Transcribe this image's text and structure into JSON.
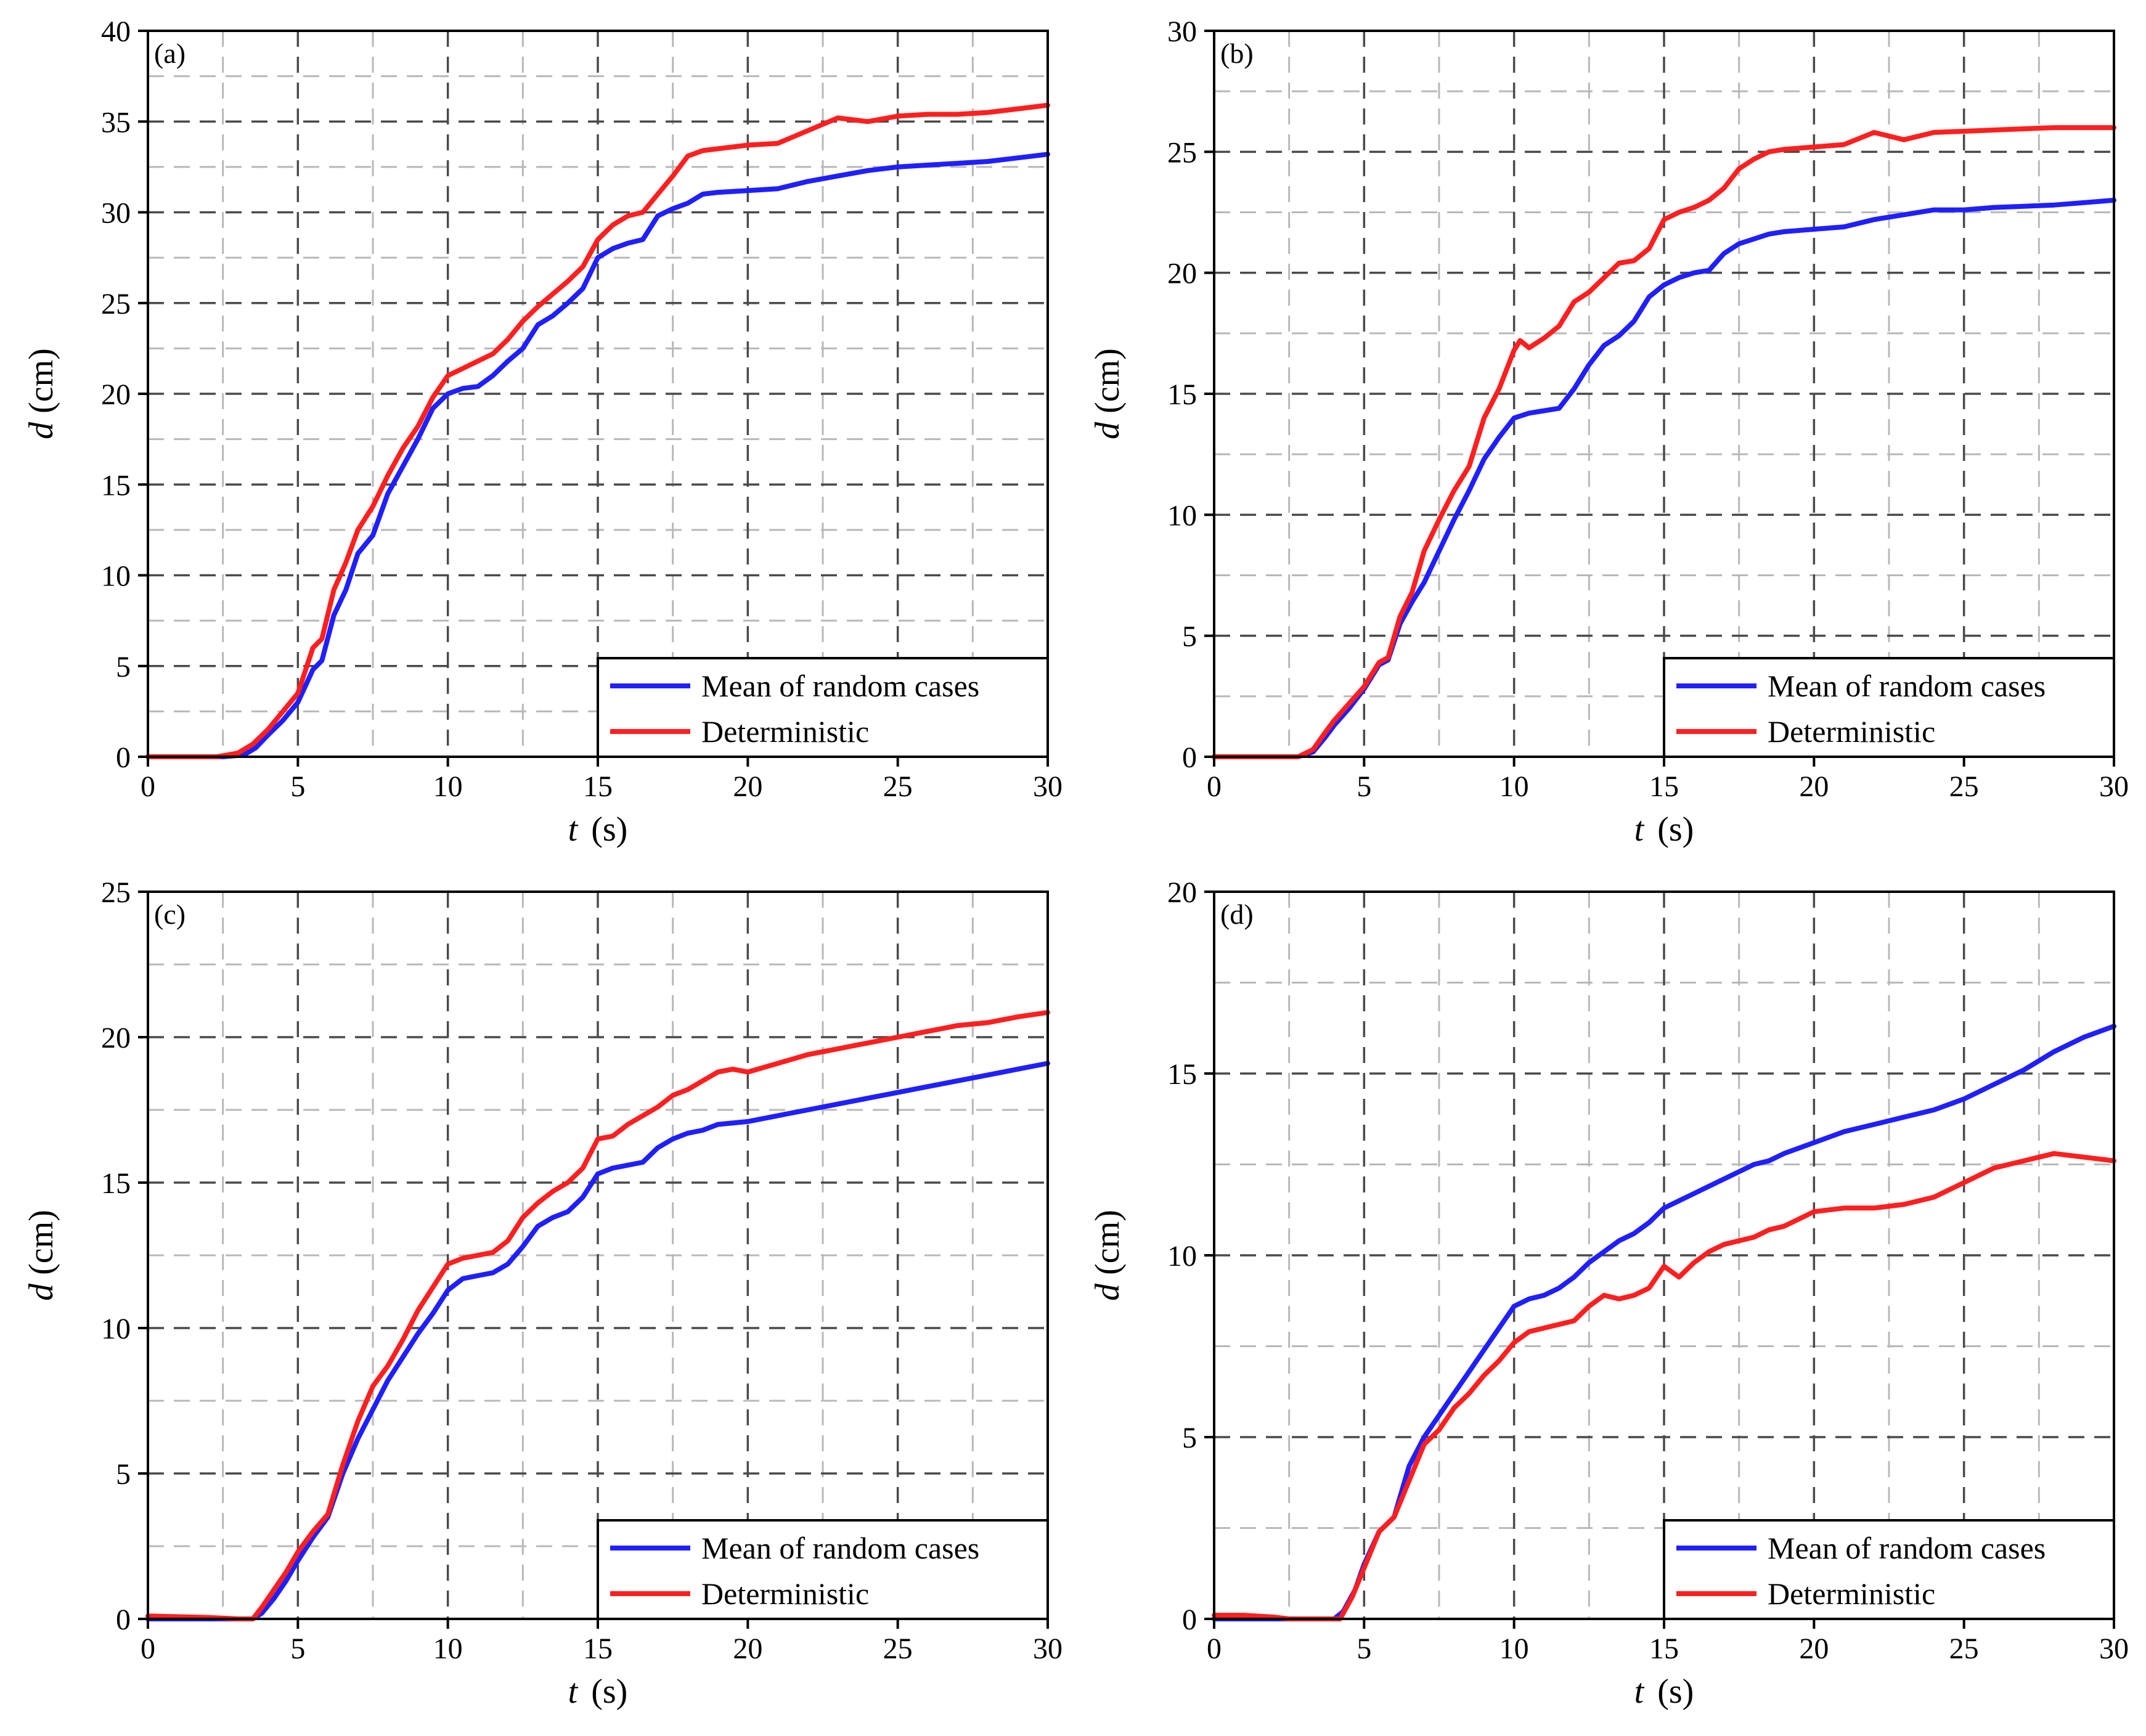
{
  "chart_data": [
    {
      "type": "line",
      "panel_label": "(a)",
      "xlabel": {
        "var": "t",
        "unit": "(s)"
      },
      "ylabel": {
        "var": "d",
        "unit": "(cm)"
      },
      "xlim": [
        0,
        30
      ],
      "ylim": [
        0,
        40
      ],
      "xticks": [
        0,
        5,
        10,
        15,
        20,
        25,
        30
      ],
      "yticks": [
        0,
        5,
        10,
        15,
        20,
        25,
        30,
        35,
        40
      ],
      "grid": true,
      "legend_position": "bottom-right",
      "series": [
        {
          "name": "Mean of random cases",
          "color": "#1f1fff",
          "x": [
            0,
            2.5,
            3.2,
            3.6,
            4,
            4.5,
            5,
            5.5,
            5.8,
            6.2,
            6.6,
            7,
            7.5,
            8,
            8.5,
            9,
            9.5,
            10,
            10.5,
            11,
            11.5,
            12,
            12.5,
            13,
            13.5,
            14,
            14.5,
            15,
            15.5,
            16,
            16.5,
            17,
            17.5,
            18,
            18.5,
            19,
            20,
            21,
            22,
            23,
            24,
            25,
            26,
            27,
            28,
            29,
            30
          ],
          "y": [
            0,
            0,
            0.1,
            0.5,
            1.2,
            2,
            3,
            4.8,
            5.3,
            7.8,
            9.2,
            11.2,
            12.2,
            14.5,
            16,
            17.5,
            19.2,
            20,
            20.3,
            20.4,
            21,
            21.8,
            22.5,
            23.8,
            24.3,
            25,
            25.8,
            27.5,
            28,
            28.3,
            28.5,
            29.8,
            30.2,
            30.5,
            31,
            31.1,
            31.2,
            31.3,
            31.7,
            32,
            32.3,
            32.5,
            32.6,
            32.7,
            32.8,
            33,
            33.2
          ]
        },
        {
          "name": "Deterministic",
          "color": "#ff1f1f",
          "x": [
            0,
            2.3,
            3,
            3.5,
            4,
            4.5,
            5,
            5.5,
            5.8,
            6.2,
            6.6,
            7,
            7.5,
            8,
            8.5,
            9,
            9.5,
            10,
            10.5,
            11,
            11.5,
            12,
            12.5,
            13,
            13.5,
            14,
            14.5,
            15,
            15.5,
            16,
            16.5,
            17,
            17.5,
            18,
            18.5,
            19,
            20,
            21,
            22,
            23,
            24,
            25,
            26,
            27,
            28,
            29,
            30
          ],
          "y": [
            0,
            0,
            0.2,
            0.7,
            1.5,
            2.5,
            3.5,
            6,
            6.5,
            9.2,
            10.7,
            12.5,
            13.8,
            15.5,
            17,
            18.2,
            19.8,
            21,
            21.4,
            21.8,
            22.2,
            23,
            24,
            24.8,
            25.5,
            26.2,
            27,
            28.5,
            29.3,
            29.8,
            30,
            31,
            32,
            33.1,
            33.4,
            33.5,
            33.7,
            33.8,
            34.5,
            35.2,
            35,
            35.3,
            35.4,
            35.4,
            35.5,
            35.7,
            35.9
          ]
        }
      ]
    },
    {
      "type": "line",
      "panel_label": "(b)",
      "xlabel": {
        "var": "t",
        "unit": "(s)"
      },
      "ylabel": {
        "var": "d",
        "unit": "(cm)"
      },
      "xlim": [
        0,
        30
      ],
      "ylim": [
        0,
        30
      ],
      "xticks": [
        0,
        5,
        10,
        15,
        20,
        25,
        30
      ],
      "yticks": [
        0,
        5,
        10,
        15,
        20,
        25,
        30
      ],
      "grid": true,
      "legend_position": "bottom-right",
      "series": [
        {
          "name": "Mean of random cases",
          "color": "#1f1fff",
          "x": [
            0,
            2.8,
            3.3,
            3.7,
            4,
            4.5,
            5,
            5.5,
            5.8,
            6.2,
            6.6,
            7,
            7.5,
            8,
            8.5,
            9,
            9.5,
            10,
            10.5,
            11,
            11.5,
            12,
            12.5,
            13,
            13.5,
            14,
            14.5,
            15,
            15.5,
            16,
            16.5,
            17,
            17.5,
            18,
            18.5,
            19,
            20,
            21,
            22,
            23,
            24,
            25,
            26,
            27,
            28,
            29,
            30
          ],
          "y": [
            0,
            0,
            0.2,
            0.8,
            1.3,
            2,
            2.8,
            3.8,
            4,
            5.5,
            6.4,
            7.2,
            8.5,
            9.8,
            11,
            12.3,
            13.2,
            14,
            14.2,
            14.3,
            14.4,
            15.2,
            16.2,
            17,
            17.4,
            18,
            19,
            19.5,
            19.8,
            20,
            20.1,
            20.8,
            21.2,
            21.4,
            21.6,
            21.7,
            21.8,
            21.9,
            22.2,
            22.4,
            22.6,
            22.6,
            22.7,
            22.75,
            22.8,
            22.9,
            23
          ]
        },
        {
          "name": "Deterministic",
          "color": "#ff1f1f",
          "x": [
            0,
            2.8,
            3.3,
            3.7,
            4,
            4.5,
            5,
            5.5,
            5.8,
            6.2,
            6.6,
            7,
            7.5,
            8,
            8.5,
            9,
            9.5,
            10,
            10.2,
            10.5,
            11,
            11.5,
            12,
            12.5,
            13,
            13.5,
            14,
            14.5,
            15,
            15.5,
            16,
            16.5,
            17,
            17.5,
            18,
            18.5,
            19,
            20,
            21,
            22,
            23,
            24,
            25,
            26,
            27,
            28,
            29,
            30
          ],
          "y": [
            0,
            0,
            0.3,
            1,
            1.5,
            2.2,
            2.9,
            3.9,
            4.1,
            5.8,
            6.8,
            8.5,
            9.8,
            11,
            12,
            14,
            15.2,
            16.8,
            17.2,
            16.9,
            17.3,
            17.8,
            18.8,
            19.2,
            19.8,
            20.4,
            20.5,
            21,
            22.2,
            22.5,
            22.7,
            23,
            23.5,
            24.3,
            24.7,
            25,
            25.1,
            25.2,
            25.3,
            25.8,
            25.5,
            25.8,
            25.85,
            25.9,
            25.95,
            26,
            26,
            26
          ]
        }
      ]
    },
    {
      "type": "line",
      "panel_label": "(c)",
      "xlabel": {
        "var": "t",
        "unit": "(s)"
      },
      "ylabel": {
        "var": "d",
        "unit": "(cm)"
      },
      "xlim": [
        0,
        30
      ],
      "ylim": [
        0,
        25
      ],
      "xticks": [
        0,
        5,
        10,
        15,
        20,
        25,
        30
      ],
      "yticks": [
        0,
        5,
        10,
        15,
        20,
        25
      ],
      "grid": true,
      "legend_position": "bottom-right",
      "series": [
        {
          "name": "Mean of random cases",
          "color": "#1f1fff",
          "x": [
            0,
            3.5,
            3.8,
            4.2,
            4.6,
            5,
            5.5,
            6,
            6.5,
            7,
            7.5,
            8,
            8.5,
            9,
            9.5,
            10,
            10.5,
            11,
            11.5,
            12,
            12.5,
            13,
            13.5,
            14,
            14.5,
            15,
            15.5,
            16,
            16.5,
            17,
            17.5,
            18,
            18.5,
            19,
            20,
            21,
            22,
            23,
            24,
            25,
            26,
            27,
            28,
            29,
            30
          ],
          "y": [
            0,
            0,
            0.2,
            0.7,
            1.3,
            2,
            2.8,
            3.5,
            5,
            6.2,
            7.2,
            8.2,
            9,
            9.8,
            10.5,
            11.3,
            11.7,
            11.8,
            11.9,
            12.2,
            12.8,
            13.5,
            13.8,
            14,
            14.5,
            15.3,
            15.5,
            15.6,
            15.7,
            16.2,
            16.5,
            16.7,
            16.8,
            17,
            17.1,
            17.3,
            17.5,
            17.7,
            17.9,
            18.1,
            18.3,
            18.5,
            18.7,
            18.9,
            19.1
          ]
        },
        {
          "name": "Deterministic",
          "color": "#ff1f1f",
          "x": [
            0,
            2,
            3,
            3.5,
            3.8,
            4.2,
            4.6,
            5,
            5.5,
            6,
            6.5,
            7,
            7.5,
            8,
            8.5,
            9,
            9.5,
            10,
            10.5,
            11,
            11.5,
            12,
            12.5,
            13,
            13.5,
            14,
            14.5,
            15,
            15.5,
            16,
            16.5,
            17,
            17.5,
            18,
            18.5,
            19,
            19.5,
            20,
            21,
            22,
            23,
            24,
            25,
            26,
            27,
            28,
            29,
            30
          ],
          "y": [
            0.1,
            0.05,
            0,
            0,
            0.4,
            1,
            1.6,
            2.3,
            3,
            3.6,
            5.3,
            6.8,
            8,
            8.7,
            9.6,
            10.6,
            11.4,
            12.2,
            12.4,
            12.5,
            12.6,
            13,
            13.8,
            14.3,
            14.7,
            15,
            15.5,
            16.5,
            16.6,
            17,
            17.3,
            17.6,
            18,
            18.2,
            18.5,
            18.8,
            18.9,
            18.8,
            19.1,
            19.4,
            19.6,
            19.8,
            20,
            20.2,
            20.4,
            20.5,
            20.7,
            20.85
          ]
        }
      ]
    },
    {
      "type": "line",
      "panel_label": "(d)",
      "xlabel": {
        "var": "t",
        "unit": "(s)"
      },
      "ylabel": {
        "var": "d",
        "unit": "(cm)"
      },
      "xlim": [
        0,
        30
      ],
      "ylim": [
        0,
        20
      ],
      "xticks": [
        0,
        5,
        10,
        15,
        20,
        25,
        30
      ],
      "yticks": [
        0,
        5,
        10,
        15,
        20
      ],
      "grid": true,
      "legend_position": "bottom-right",
      "series": [
        {
          "name": "Mean of random cases",
          "color": "#1f1fff",
          "x": [
            0,
            4,
            4.3,
            4.7,
            5,
            5.5,
            6,
            6.5,
            7,
            7.5,
            8,
            8.5,
            9,
            9.5,
            10,
            10.5,
            11,
            11.5,
            12,
            12.5,
            13,
            13.5,
            14,
            14.5,
            15,
            15.5,
            16,
            16.5,
            17,
            17.5,
            18,
            18.5,
            19,
            20,
            21,
            22,
            23,
            24,
            25,
            26,
            27,
            28,
            29,
            30
          ],
          "y": [
            0,
            0,
            0.2,
            0.8,
            1.5,
            2.4,
            2.8,
            4.2,
            5,
            5.6,
            6.2,
            6.8,
            7.4,
            8,
            8.6,
            8.8,
            8.9,
            9.1,
            9.4,
            9.8,
            10.1,
            10.4,
            10.6,
            10.9,
            11.3,
            11.5,
            11.7,
            11.9,
            12.1,
            12.3,
            12.5,
            12.6,
            12.8,
            13.1,
            13.4,
            13.6,
            13.8,
            14,
            14.3,
            14.7,
            15.1,
            15.6,
            16,
            16.3
          ]
        },
        {
          "name": "Deterministic",
          "color": "#ff1f1f",
          "x": [
            0,
            1,
            2,
            2.5,
            4.2,
            4.6,
            5,
            5.5,
            6,
            6.5,
            7,
            7.5,
            8,
            8.5,
            9,
            9.5,
            10,
            10.5,
            11,
            11.5,
            12,
            12.5,
            13,
            13.5,
            14,
            14.5,
            15,
            15.5,
            16,
            16.5,
            17,
            17.5,
            18,
            18.5,
            19,
            20,
            21,
            22,
            23,
            24,
            25,
            26,
            27,
            28,
            29,
            30
          ],
          "y": [
            0.1,
            0.1,
            0.05,
            0,
            0,
            0.6,
            1.4,
            2.4,
            2.8,
            3.8,
            4.8,
            5.2,
            5.8,
            6.2,
            6.7,
            7.1,
            7.6,
            7.9,
            8,
            8.1,
            8.2,
            8.6,
            8.9,
            8.8,
            8.9,
            9.1,
            9.7,
            9.4,
            9.8,
            10.1,
            10.3,
            10.4,
            10.5,
            10.7,
            10.8,
            11.2,
            11.3,
            11.3,
            11.4,
            11.6,
            12,
            12.4,
            12.6,
            12.8,
            12.7,
            12.6
          ]
        }
      ]
    }
  ]
}
